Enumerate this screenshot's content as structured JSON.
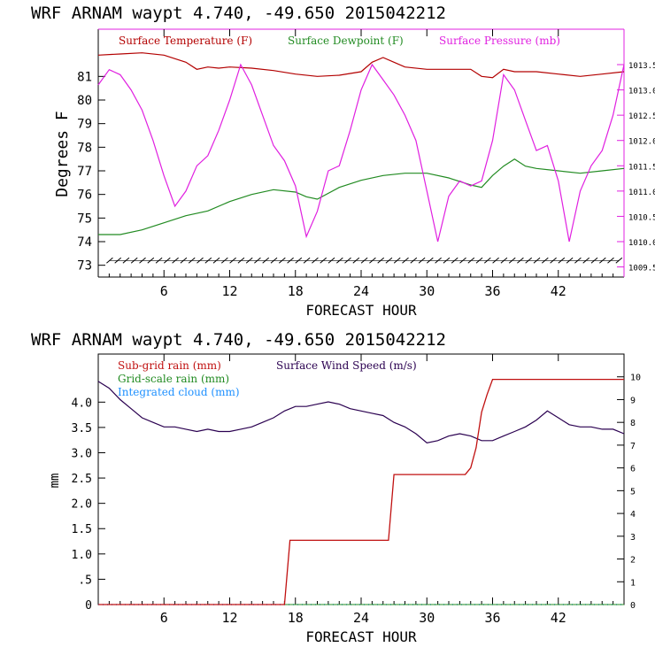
{
  "chart_data": [
    {
      "type": "line",
      "title": "WRF   ARNAM waypt     4.740, -49.650  2015042212",
      "xlabel": "FORECAST HOUR",
      "ylabel": "Degrees F",
      "xlim": [
        0,
        48
      ],
      "xticks": [
        6,
        12,
        18,
        24,
        30,
        36,
        42
      ],
      "ylim": [
        72.5,
        83
      ],
      "yticks": [
        73,
        74,
        75,
        76,
        77,
        78,
        79,
        80,
        81
      ],
      "y2lim": [
        1009.3,
        1014.2
      ],
      "y2ticks": [
        1009.5,
        1010.0,
        1010.5,
        1011.0,
        1011.5,
        1012.0,
        1012.5,
        1013.0,
        1013.5
      ],
      "y2tick_labels": [
        "1009.5",
        "1010.0",
        "1010.5",
        "1011.0",
        "1011.5",
        "1012.0",
        "1012.5",
        "1013.0",
        "1013.5"
      ],
      "legend": [
        "Surface Temperature (F)",
        "Surface Dewpoint (F)",
        "Surface Pressure (mb)"
      ],
      "colors": {
        "temperature": "#b30000",
        "dewpoint": "#228b22",
        "pressure": "#e020e0",
        "axis": "#000000",
        "frame_right": "#e020e0",
        "barbs": "#000000"
      },
      "series": [
        {
          "name": "Surface Temperature (F)",
          "axis": "left",
          "x": [
            0,
            2,
            4,
            6,
            8,
            9,
            10,
            11,
            12,
            14,
            16,
            18,
            20,
            22,
            24,
            25,
            26,
            27,
            28,
            30,
            32,
            34,
            35,
            36,
            37,
            38,
            40,
            42,
            44,
            46,
            48
          ],
          "y": [
            81.9,
            81.95,
            82.0,
            81.9,
            81.6,
            81.3,
            81.4,
            81.35,
            81.4,
            81.35,
            81.25,
            81.1,
            81.0,
            81.05,
            81.2,
            81.6,
            81.8,
            81.6,
            81.4,
            81.3,
            81.3,
            81.3,
            81.0,
            80.95,
            81.3,
            81.2,
            81.2,
            81.1,
            81.0,
            81.1,
            81.2
          ]
        },
        {
          "name": "Surface Dewpoint (F)",
          "axis": "left",
          "x": [
            0,
            2,
            4,
            6,
            8,
            10,
            12,
            14,
            16,
            18,
            19,
            20,
            22,
            24,
            26,
            28,
            30,
            32,
            34,
            35,
            36,
            37,
            38,
            39,
            40,
            42,
            44,
            46,
            48
          ],
          "y": [
            74.3,
            74.3,
            74.5,
            74.8,
            75.1,
            75.3,
            75.7,
            76.0,
            76.2,
            76.1,
            75.9,
            75.8,
            76.3,
            76.6,
            76.8,
            76.9,
            76.9,
            76.7,
            76.4,
            76.3,
            76.8,
            77.2,
            77.5,
            77.2,
            77.1,
            77.0,
            76.9,
            77.0,
            77.1
          ]
        },
        {
          "name": "Surface Pressure (mb)",
          "axis": "right",
          "x": [
            0,
            1,
            2,
            3,
            4,
            5,
            6,
            7,
            8,
            9,
            10,
            11,
            12,
            13,
            14,
            15,
            16,
            17,
            18,
            19,
            20,
            21,
            22,
            23,
            24,
            25,
            26,
            27,
            28,
            29,
            30,
            31,
            32,
            33,
            34,
            35,
            36,
            37,
            38,
            39,
            40,
            41,
            42,
            43,
            44,
            45,
            46,
            47,
            48
          ],
          "y": [
            1013.1,
            1013.4,
            1013.3,
            1013.0,
            1012.6,
            1012.0,
            1011.3,
            1010.7,
            1011.0,
            1011.5,
            1011.7,
            1012.2,
            1012.8,
            1013.5,
            1013.1,
            1012.5,
            1011.9,
            1011.6,
            1011.1,
            1010.1,
            1010.6,
            1011.4,
            1011.5,
            1012.2,
            1013.0,
            1013.5,
            1013.2,
            1012.9,
            1012.5,
            1012.0,
            1011.0,
            1010.0,
            1010.9,
            1011.2,
            1011.1,
            1011.2,
            1012.0,
            1013.3,
            1013.0,
            1012.4,
            1011.8,
            1011.9,
            1011.2,
            1010.0,
            1011.0,
            1011.5,
            1011.8,
            1012.5,
            1013.5
          ]
        }
      ],
      "wind_barbs_row_y": 73.2
    },
    {
      "type": "line",
      "title": "WRF   ARNAM waypt     4.740, -49.650  2015042212",
      "xlabel": "FORECAST HOUR",
      "ylabel": "mm",
      "xlim": [
        0,
        48
      ],
      "xticks": [
        6,
        12,
        18,
        24,
        30,
        36,
        42
      ],
      "ylim": [
        0,
        4.95
      ],
      "yticks": [
        0,
        0.5,
        1.0,
        1.5,
        2.0,
        2.5,
        3.0,
        3.5,
        4.0
      ],
      "ytick_labels": [
        "0",
        ".5",
        "1.0",
        "1.5",
        "2.0",
        "2.5",
        "3.0",
        "3.5",
        "4.0"
      ],
      "y2lim": [
        0,
        11.0
      ],
      "y2ticks": [
        0,
        1,
        2,
        3,
        4,
        5,
        6,
        7,
        8,
        9,
        10
      ],
      "y2tick_labels": [
        "0",
        "1",
        "2",
        "3",
        "4",
        "5",
        "6",
        "7",
        "8",
        "9",
        "10"
      ],
      "legend": [
        "Sub-grid rain (mm)",
        "Grid-scale rain (mm)",
        "Integrated cloud (mm)",
        "Surface Wind Speed (m/s)"
      ],
      "colors": {
        "subgrid": "#c01010",
        "gridscale": "#228b22",
        "cloud": "#1e90ff",
        "wind": "#2a0050",
        "axis": "#000000"
      },
      "series": [
        {
          "name": "Sub-grid rain (mm)",
          "axis": "left",
          "x": [
            0,
            17.0,
            17.5,
            26.5,
            27.0,
            33.5,
            34.0,
            34.5,
            35.0,
            35.5,
            36.0,
            48
          ],
          "y": [
            0,
            0,
            1.27,
            1.27,
            2.57,
            2.57,
            2.7,
            3.1,
            3.8,
            4.15,
            4.45,
            4.45
          ]
        },
        {
          "name": "Grid-scale rain (mm)",
          "axis": "left",
          "x": [
            0,
            48
          ],
          "y": [
            0,
            0
          ]
        },
        {
          "name": "Integrated cloud (mm)",
          "axis": "left",
          "x": [
            0,
            48
          ],
          "y": [
            0,
            0
          ]
        },
        {
          "name": "Surface Wind Speed (m/s)",
          "axis": "right",
          "x": [
            0,
            1,
            2,
            3,
            4,
            5,
            6,
            7,
            8,
            9,
            10,
            11,
            12,
            13,
            14,
            15,
            16,
            17,
            18,
            19,
            20,
            21,
            22,
            23,
            24,
            25,
            26,
            27,
            28,
            29,
            30,
            31,
            32,
            33,
            34,
            35,
            36,
            37,
            38,
            39,
            40,
            41,
            42,
            43,
            44,
            45,
            46,
            47,
            48
          ],
          "y": [
            9.8,
            9.5,
            9.0,
            8.6,
            8.2,
            8.0,
            7.8,
            7.8,
            7.7,
            7.6,
            7.7,
            7.6,
            7.6,
            7.7,
            7.8,
            8.0,
            8.2,
            8.5,
            8.7,
            8.7,
            8.8,
            8.9,
            8.8,
            8.6,
            8.5,
            8.4,
            8.3,
            8.0,
            7.8,
            7.5,
            7.1,
            7.2,
            7.4,
            7.5,
            7.4,
            7.2,
            7.2,
            7.4,
            7.6,
            7.8,
            8.1,
            8.5,
            8.2,
            7.9,
            7.8,
            7.8,
            7.7,
            7.7,
            7.5
          ]
        }
      ]
    }
  ]
}
